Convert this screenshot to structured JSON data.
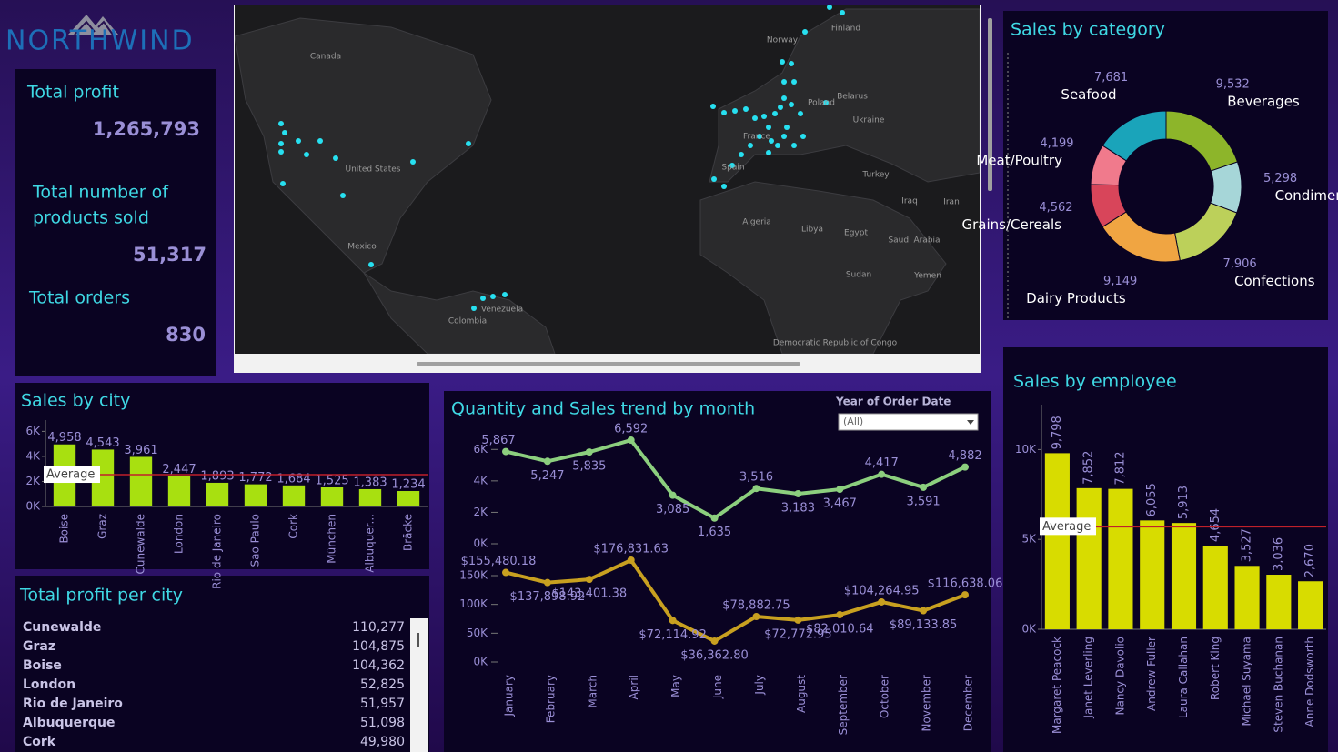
{
  "logo": "NORTHWIND",
  "kpis": [
    {
      "label": "Total profit",
      "value": "1,265,793"
    },
    {
      "label": [
        "Total number of",
        "products sold"
      ],
      "value": "51,317"
    },
    {
      "label": "Total orders",
      "value": "830"
    }
  ],
  "map": {
    "labels": [
      "Canada",
      "United States",
      "Mexico",
      "Venezuela",
      "Colombia",
      "Norway",
      "Finland",
      "Belarus",
      "Poland",
      "Ukraine",
      "France",
      "Spain",
      "Turkey",
      "Iraq",
      "Iran",
      "Algeria",
      "Libya",
      "Egypt",
      "Saudi Arabia",
      "Yemen",
      "Sudan",
      "Democratic Republic of Congo"
    ]
  },
  "profit_table": {
    "title": "Total profit per city",
    "rows": [
      [
        "Cunewalde",
        "110,277"
      ],
      [
        "Graz",
        "104,875"
      ],
      [
        "Boise",
        "104,362"
      ],
      [
        "London",
        "52,825"
      ],
      [
        "Rio de Janeiro",
        "51,957"
      ],
      [
        "Albuquerque",
        "51,098"
      ],
      [
        "Cork",
        "49,980"
      ]
    ]
  },
  "chart_data": [
    {
      "type": "bar",
      "title": "Sales by city",
      "categories": [
        "Boise",
        "Graz",
        "Cunewalde",
        "London",
        "Rio de Janeiro",
        "Sao Paulo",
        "Cork",
        "München",
        "Albuquer...",
        "Bräcke"
      ],
      "values": [
        4958,
        4543,
        3961,
        2447,
        1893,
        1772,
        1684,
        1525,
        1383,
        1234
      ],
      "value_labels": [
        "4,958",
        "4,543",
        "3,961",
        "2,447",
        "1,893",
        "1,772",
        "1,684",
        "1,525",
        "1,383",
        "1,234"
      ],
      "color": "#a8e010",
      "ylim": [
        0,
        6900
      ],
      "yticks": [
        {
          "value": 0,
          "label": "0K"
        },
        {
          "value": 2000,
          "label": "2K"
        },
        {
          "value": 4000,
          "label": "4K"
        },
        {
          "value": 6000,
          "label": "6K"
        }
      ],
      "average": 2540,
      "average_label": "Average",
      "average_color": "#c0202a"
    },
    {
      "type": "line",
      "title": "Quantity and Sales trend by month",
      "filter_label": "Year of Order Date",
      "filter_value": "(All)",
      "categories": [
        "January",
        "February",
        "March",
        "April",
        "May",
        "June",
        "July",
        "August",
        "September",
        "October",
        "November",
        "December"
      ],
      "series": [
        {
          "color": "#8ccf7e",
          "values": [
            5867,
            5247,
            5835,
            6592,
            3085,
            1635,
            3516,
            3183,
            3467,
            4417,
            3591,
            4882
          ],
          "value_labels": [
            "5,867",
            "5,247",
            "5,835",
            "6,592",
            "3,085",
            "1,635",
            "3,516",
            "3,183",
            "3,467",
            "4,417",
            "3,591",
            "4,882"
          ]
        },
        {
          "color": "#c8a020",
          "axis": "y2",
          "values": [
            155480.18,
            137898.92,
            143401.38,
            176831.63,
            72114.92,
            36362.8,
            78882.75,
            72772.95,
            82010.64,
            104264.95,
            89133.85,
            116638.06
          ],
          "value_labels": [
            "$155,480.18",
            "$137,898.92",
            "$143,401.38",
            "$176,831.63",
            "$72,114.92",
            "$36,362.80",
            "$78,882.75",
            "$72,772.95",
            "$82,010.64",
            "$104,264.95",
            "$89,133.85",
            "$116,638.06"
          ]
        }
      ],
      "ylim": [
        0,
        7000
      ],
      "yticks": [
        {
          "value": 0,
          "label": "0K"
        },
        {
          "value": 2000,
          "label": "2K"
        },
        {
          "value": 4000,
          "label": "4K"
        },
        {
          "value": 6000,
          "label": "6K"
        }
      ],
      "y2lim": [
        0,
        180000
      ],
      "y2ticks": [
        {
          "value": 0,
          "label": "0K"
        },
        {
          "value": 50000,
          "label": "50K"
        },
        {
          "value": 100000,
          "label": "100K"
        },
        {
          "value": 150000,
          "label": "150K"
        }
      ]
    },
    {
      "type": "donut",
      "title": "Sales by category",
      "categories": [
        "Beverages",
        "Condiments",
        "Confections",
        "Dairy Products",
        "Grains/Cereals",
        "Meat/Poultry",
        "Seafood"
      ],
      "values": [
        9532,
        5298,
        7906,
        9149,
        4562,
        4199,
        7681
      ],
      "value_labels": [
        "9,532",
        "5,298",
        "7,906",
        "9,149",
        "4,562",
        "4,199",
        "7,681"
      ],
      "colors": [
        "#8db52a",
        "#a6d6d8",
        "#bcd05a",
        "#f0a542",
        "#d8455a",
        "#f07a8c",
        "#1aa4ba"
      ]
    },
    {
      "type": "bar",
      "title": "Sales by employee",
      "categories": [
        "Margaret Peacock",
        "Janet Leverling",
        "Nancy Davolio",
        "Andrew Fuller",
        "Laura Callahan",
        "Robert King",
        "Michael Suyama",
        "Steven Buchanan",
        "Anne Dodsworth"
      ],
      "values": [
        9798,
        7852,
        7812,
        6055,
        5913,
        4654,
        3527,
        3036,
        2670
      ],
      "value_labels": [
        "9,798",
        "7,852",
        "7,812",
        "6,055",
        "5,913",
        "4,654",
        "3,527",
        "3,036",
        "2,670"
      ],
      "color": "#d8dc00",
      "ylim": [
        0,
        12500
      ],
      "yticks": [
        {
          "value": 0,
          "label": "0K"
        },
        {
          "value": 5000,
          "label": "5K"
        },
        {
          "value": 10000,
          "label": "10K"
        }
      ],
      "average": 5702,
      "average_label": "Average",
      "average_color": "#c0202a"
    }
  ]
}
